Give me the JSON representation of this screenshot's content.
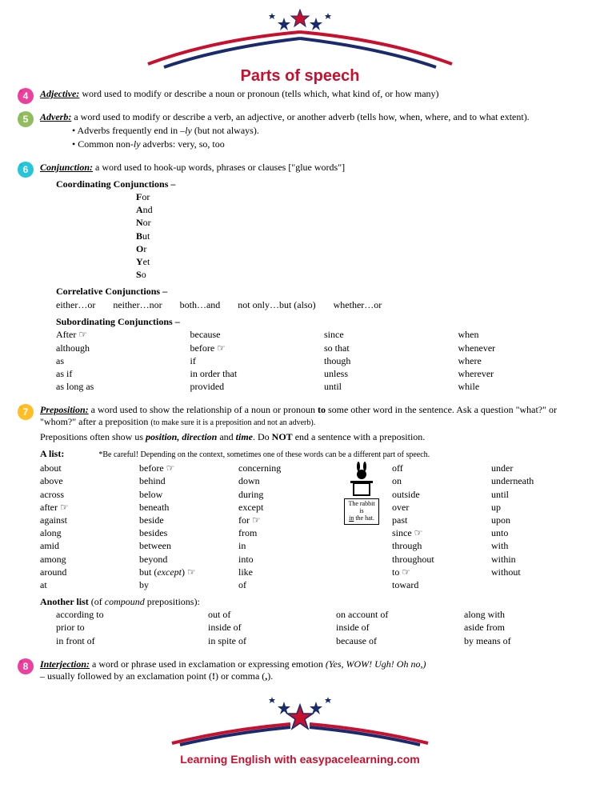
{
  "colors": {
    "red": "#c8102e",
    "navy": "#1a2b6d",
    "blue": "#2e6fd9"
  },
  "title": "Parts of speech",
  "footer": "Learning English with easypacelearning.com",
  "sections": {
    "adjective": {
      "num": "4",
      "badge_color": "#e91e8c",
      "term": "Adjective:",
      "def": " word used to modify or describe a noun or pronoun (tells which, what kind of, or how many)"
    },
    "adverb": {
      "num": "5",
      "badge_color": "#7cb342",
      "term": "Adverb:",
      "def": " a word used to modify or describe a verb, an adjective, or another adverb (tells how, when, where, and to what extent).",
      "b1_prefix": "Adverbs frequently end in ",
      "b1_italic": "–ly",
      "b1_suffix": " (but not always).",
      "b2_prefix": "Common non-",
      "b2_italic": "ly",
      "b2_suffix": " adverbs: very, so, too"
    },
    "conjunction": {
      "num": "6",
      "badge_color": "#00bcd4",
      "term": "Conjunction:",
      "def": " a word used to hook-up words, phrases or clauses [\"glue words\"]",
      "coord_head": "Coordinating Conjunctions –",
      "fanboys": [
        {
          "first": "F",
          "rest": "or"
        },
        {
          "first": "A",
          "rest": "nd"
        },
        {
          "first": "N",
          "rest": "or"
        },
        {
          "first": "B",
          "rest": "ut"
        },
        {
          "first": "O",
          "rest": "r"
        },
        {
          "first": "Y",
          "rest": "et"
        },
        {
          "first": "S",
          "rest": "o"
        }
      ],
      "correl_head": "Correlative Conjunctions –",
      "correl": [
        "either…or",
        "neither…nor",
        "both…and",
        "not only…but (also)",
        "whether…or"
      ],
      "subord_head": "Subordinating Conjunctions –",
      "subord": {
        "c1": [
          "After ☞",
          "although",
          "as",
          "as if",
          "as long as"
        ],
        "c2": [
          "because",
          "before ☞",
          "if",
          "in order that",
          "provided"
        ],
        "c3": [
          "since",
          "so that",
          "though",
          "unless",
          "until"
        ],
        "c4": [
          "when",
          "whenever",
          "where",
          "wherever",
          "while"
        ]
      }
    },
    "preposition": {
      "num": "7",
      "badge_color": "#ffb300",
      "term": "Preposition:",
      "def_prefix": " a word used to show the relationship of a noun or pronoun ",
      "def_bold": "to",
      "def_suffix": " some other word in the sentence. Ask a question \"what?\" or \"whom?\" after a preposition ",
      "def_small": "(to make sure it is a preposition and not an adverb).",
      "p2_prefix": "Prepositions often show us ",
      "p2_italic": "position, direction",
      "p2_mid": " and ",
      "p2_italic2": "time",
      "p2_suffix": ".  Do ",
      "p2_bold": "NOT",
      "p2_end": " end a sentence with a preposition.",
      "list_head": "A list:",
      "list_note": "*Be careful! Depending on the context, sometimes one of these words can be a different part of speech.",
      "rabbit_label_l1": "The rabbit",
      "rabbit_label_l2": "is",
      "rabbit_label_l3": "in",
      "rabbit_label_l4": " the hat.",
      "prep": {
        "c1": [
          "about",
          "above",
          "across",
          "after ☞",
          "against",
          "along",
          "amid",
          "among",
          "around",
          "at"
        ],
        "c2": [
          "before ☞",
          "behind",
          "below",
          "beneath",
          "beside",
          "besides",
          "between",
          "beyond",
          "but (except) ☞",
          "by"
        ],
        "c3": [
          "concerning",
          "down",
          "during",
          "except",
          "for ☞",
          "from",
          "in",
          "into",
          "like",
          "of"
        ],
        "c5": [
          "off",
          "on",
          "outside",
          "over",
          "past",
          "since ☞",
          "through",
          "throughout",
          "to ☞",
          "toward"
        ],
        "c6": [
          "under",
          "underneath",
          "until",
          "up",
          "upon",
          "unto",
          "with",
          "within",
          "without",
          ""
        ]
      },
      "compound_head_prefix": "Another list ",
      "compound_head_paren": "(of ",
      "compound_head_italic": "compound",
      "compound_head_suffix": " prepositions):",
      "compound": {
        "c1": [
          "according to",
          "prior to",
          "in front of"
        ],
        "c2": [
          "out of",
          "inside of",
          "in spite of"
        ],
        "c3": [
          "on account of",
          "inside of",
          "because of"
        ],
        "c4": [
          "along with",
          "aside from",
          "by means of"
        ]
      }
    },
    "interjection": {
      "num": "8",
      "badge_color": "#e91e8c",
      "term": "Interjection:",
      "def_prefix": " a word or phrase used in exclamation or expressing emotion ",
      "def_italic": "(Yes, WOW! Ugh! Oh no,)",
      "def_line2_prefix": " – usually followed by an exclamation point (",
      "def_line2_bold": "!",
      "def_line2_mid": ") or comma (",
      "def_line2_bold2": ",",
      "def_line2_end": ")."
    }
  }
}
